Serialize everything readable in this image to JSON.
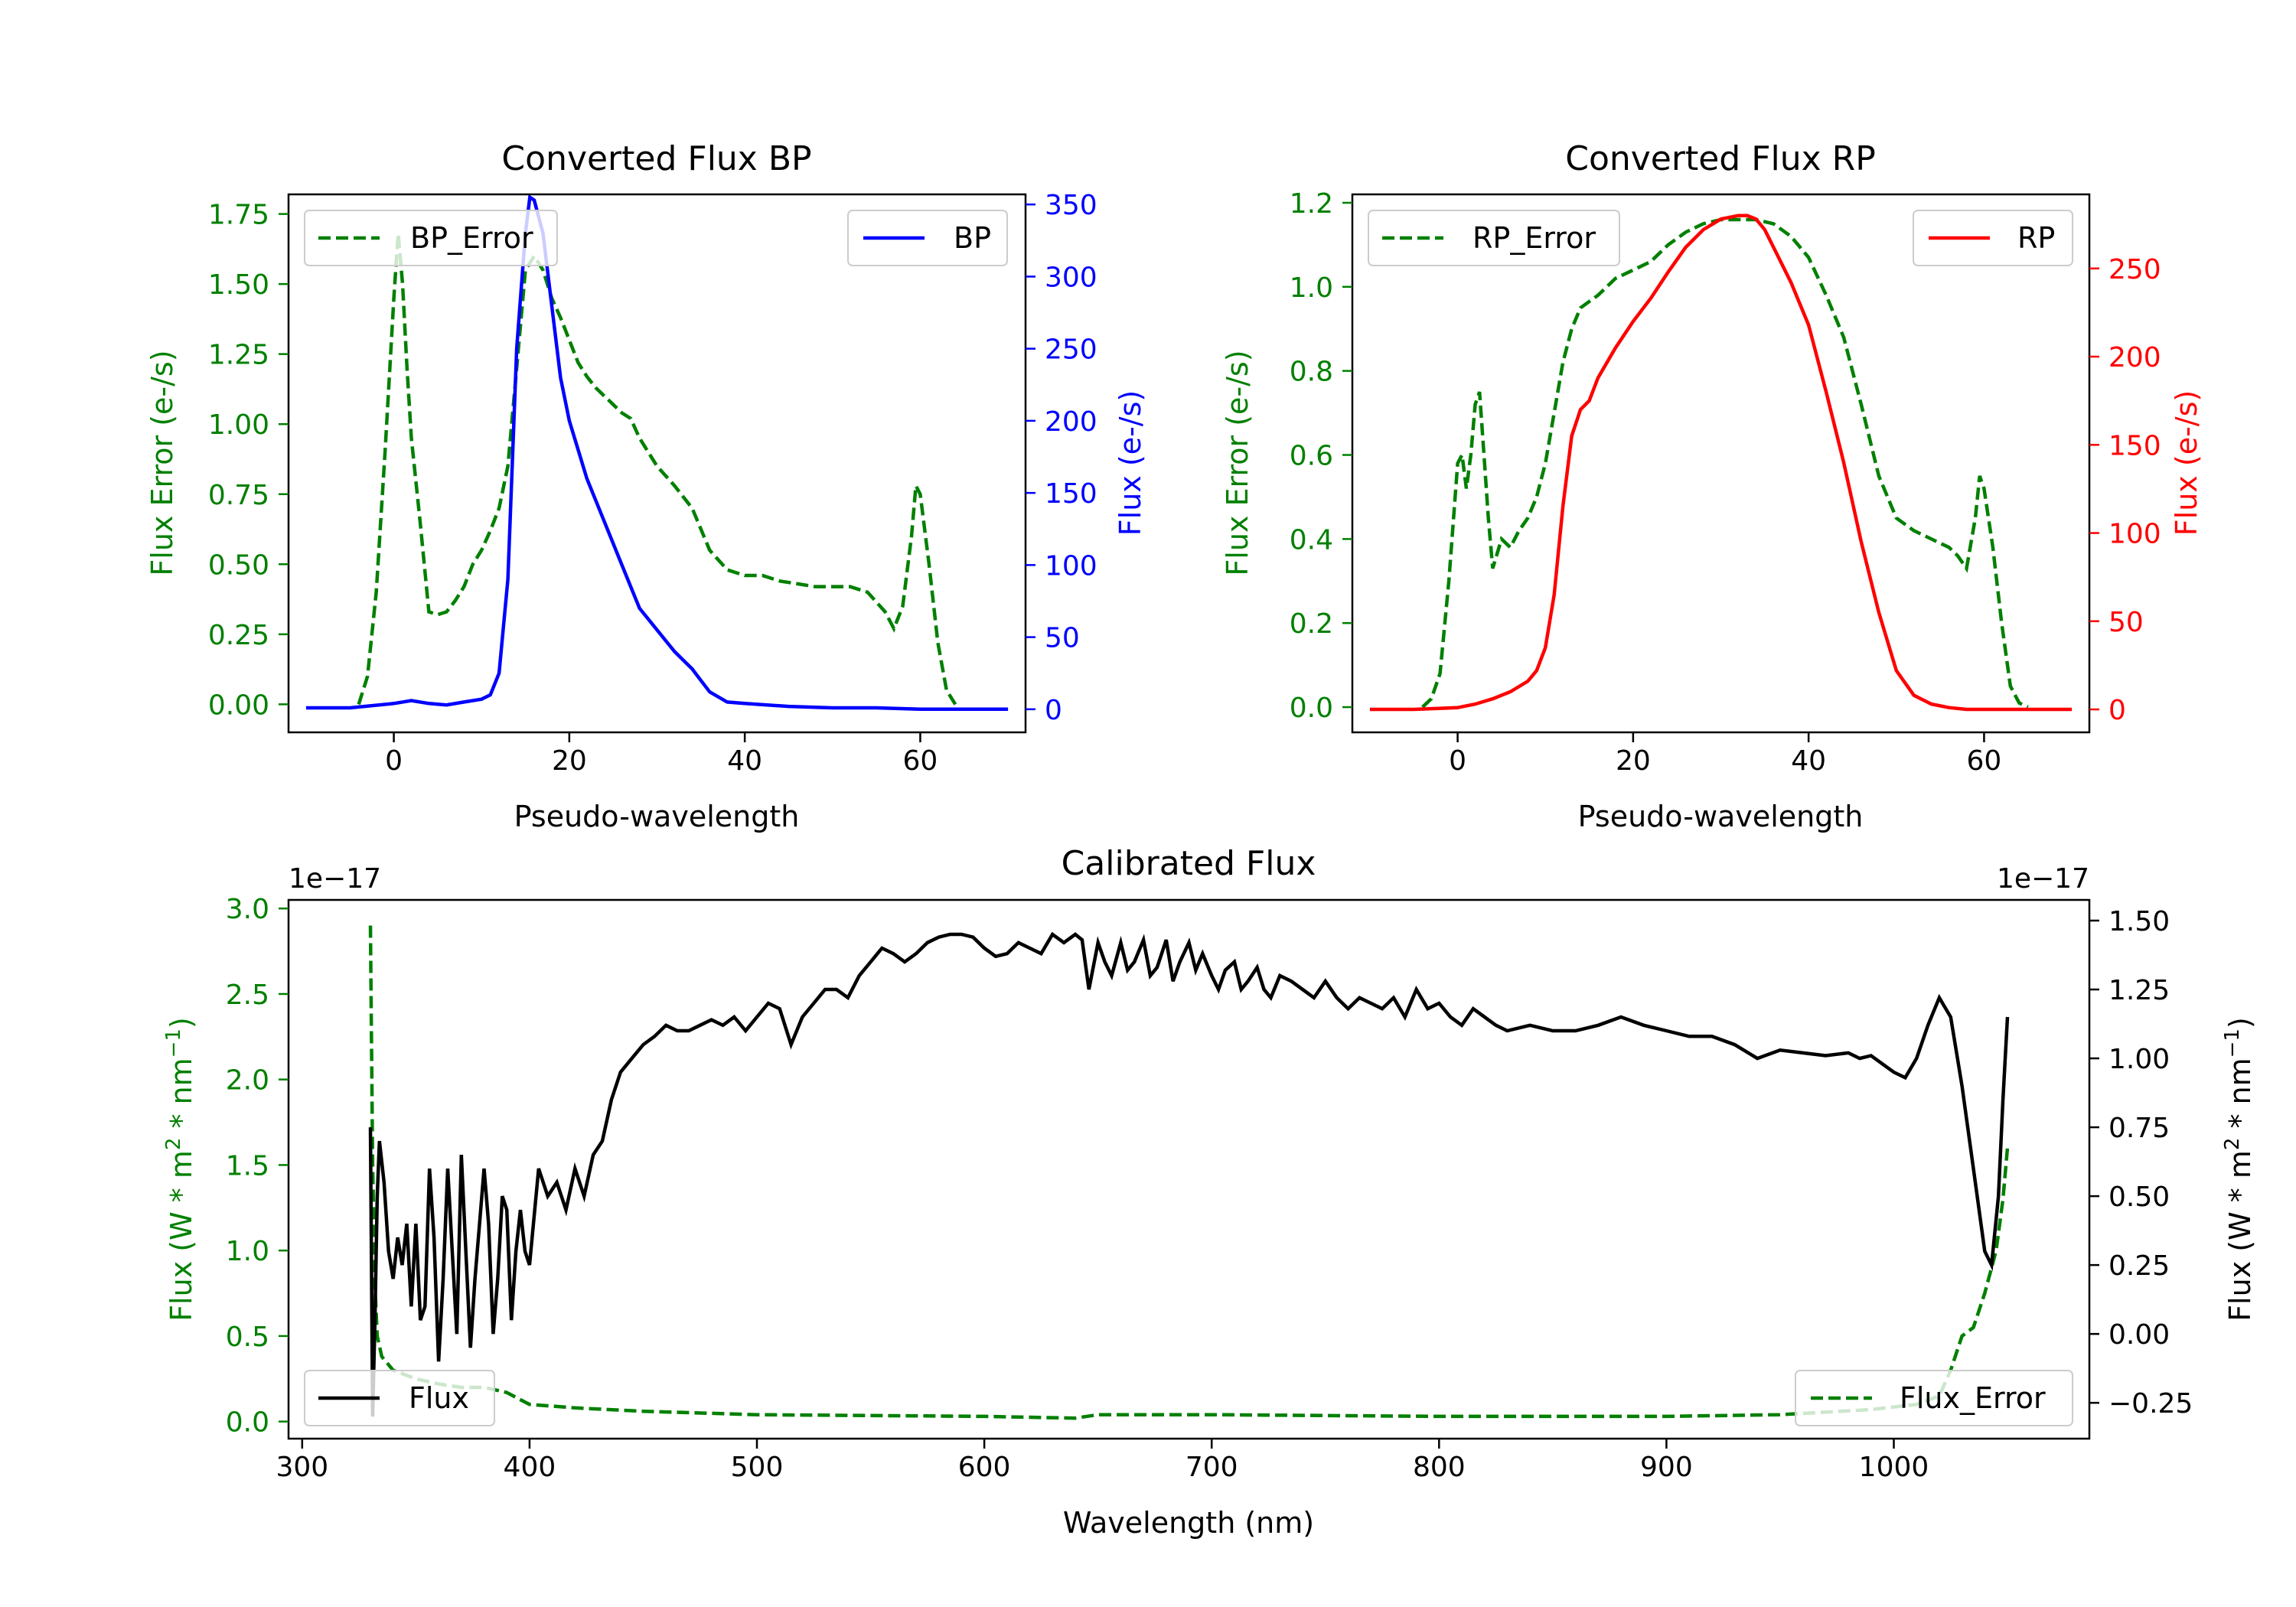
{
  "colors": {
    "error": "#008000",
    "bp": "#0000ff",
    "rp": "#ff0000",
    "flux": "#000000"
  },
  "chart_data": [
    {
      "id": "bp",
      "type": "line",
      "title": "Converted Flux BP",
      "xlabel": "Pseudo-wavelength",
      "ylabel_left": "Flux Error (e-/s)",
      "ylabel_right": "Flux (e-/s)",
      "xlim": [
        -12,
        72
      ],
      "ylim_left": [
        -0.1,
        1.82
      ],
      "ylim_right": [
        -16,
        357
      ],
      "xticks": [
        0,
        20,
        40,
        60
      ],
      "yticks_left": [
        "0.00",
        "0.25",
        "0.50",
        "0.75",
        "1.00",
        "1.25",
        "1.50",
        "1.75"
      ],
      "yticks_right": [
        "0",
        "50",
        "100",
        "150",
        "200",
        "250",
        "300",
        "350"
      ],
      "series": [
        {
          "name": "BP_Error",
          "axis": "left",
          "style": "dashed",
          "color": "#008000",
          "x": [
            -4,
            -3,
            -2,
            -1,
            0,
            0.5,
            1,
            1.5,
            2,
            3,
            4,
            5,
            6,
            7,
            8,
            9,
            10,
            11,
            12,
            13,
            14,
            15,
            16,
            17,
            18,
            19,
            20,
            21,
            22,
            23,
            24,
            25,
            26,
            27,
            28,
            30,
            32,
            34,
            36,
            38,
            40,
            42,
            44,
            46,
            48,
            50,
            52,
            54,
            56,
            57,
            58,
            59,
            59.5,
            60,
            61,
            62,
            63,
            64
          ],
          "values": [
            0.0,
            0.1,
            0.4,
            0.9,
            1.45,
            1.68,
            1.5,
            1.2,
            0.95,
            0.65,
            0.33,
            0.32,
            0.33,
            0.37,
            0.42,
            0.5,
            0.55,
            0.62,
            0.7,
            0.85,
            1.2,
            1.55,
            1.6,
            1.55,
            1.45,
            1.38,
            1.3,
            1.22,
            1.17,
            1.13,
            1.1,
            1.07,
            1.04,
            1.02,
            0.95,
            0.85,
            0.78,
            0.7,
            0.55,
            0.48,
            0.46,
            0.46,
            0.44,
            0.43,
            0.42,
            0.42,
            0.42,
            0.4,
            0.33,
            0.27,
            0.35,
            0.6,
            0.78,
            0.75,
            0.5,
            0.22,
            0.05,
            0.0
          ]
        },
        {
          "name": "BP",
          "axis": "right",
          "style": "solid",
          "color": "#0000ff",
          "x": [
            -10,
            -5,
            0,
            2,
            4,
            6,
            8,
            10,
            11,
            12,
            13,
            14,
            15,
            15.5,
            16,
            17,
            18,
            19,
            20,
            22,
            24,
            26,
            28,
            30,
            32,
            34,
            35,
            36,
            38,
            40,
            45,
            50,
            55,
            60,
            65,
            70
          ],
          "values": [
            1,
            1,
            4,
            6,
            4,
            3,
            5,
            7,
            10,
            25,
            90,
            250,
            330,
            355,
            353,
            330,
            280,
            230,
            200,
            160,
            130,
            100,
            70,
            55,
            40,
            28,
            20,
            12,
            5,
            4,
            2,
            1,
            1,
            0,
            0,
            0
          ]
        }
      ],
      "legend": [
        {
          "label": "BP_Error",
          "position": "upper-left"
        },
        {
          "label": "BP",
          "position": "upper-right"
        }
      ]
    },
    {
      "id": "rp",
      "type": "line",
      "title": "Converted Flux RP",
      "xlabel": "Pseudo-wavelength",
      "ylabel_left": "Flux Error (e-/s)",
      "ylabel_right": "Flux (e-/s)",
      "xlim": [
        -12,
        72
      ],
      "ylim_left": [
        -0.06,
        1.22
      ],
      "ylim_right": [
        -13,
        292
      ],
      "xticks": [
        0,
        20,
        40,
        60
      ],
      "yticks_left": [
        "0.0",
        "0.2",
        "0.4",
        "0.6",
        "0.8",
        "1.0",
        "1.2"
      ],
      "yticks_right": [
        "0",
        "50",
        "100",
        "150",
        "200",
        "250"
      ],
      "series": [
        {
          "name": "RP_Error",
          "axis": "left",
          "style": "dashed",
          "color": "#008000",
          "x": [
            -4,
            -3,
            -2,
            -1,
            0,
            0.5,
            1,
            1.5,
            2,
            2.5,
            3,
            3.5,
            4,
            5,
            6,
            7,
            8,
            9,
            10,
            11,
            12,
            13,
            14,
            16,
            18,
            20,
            22,
            24,
            26,
            28,
            30,
            32,
            34,
            36,
            38,
            40,
            42,
            44,
            46,
            48,
            50,
            52,
            54,
            56,
            57,
            58,
            59,
            59.5,
            60,
            61,
            62,
            63,
            64,
            65
          ],
          "values": [
            0.0,
            0.02,
            0.08,
            0.3,
            0.58,
            0.6,
            0.52,
            0.6,
            0.72,
            0.75,
            0.6,
            0.45,
            0.33,
            0.4,
            0.38,
            0.42,
            0.45,
            0.5,
            0.58,
            0.7,
            0.82,
            0.9,
            0.95,
            0.98,
            1.02,
            1.04,
            1.06,
            1.1,
            1.13,
            1.15,
            1.16,
            1.16,
            1.16,
            1.15,
            1.12,
            1.07,
            0.98,
            0.88,
            0.72,
            0.55,
            0.45,
            0.42,
            0.4,
            0.38,
            0.36,
            0.33,
            0.45,
            0.55,
            0.52,
            0.38,
            0.2,
            0.05,
            0.01,
            0.0
          ]
        },
        {
          "name": "RP",
          "axis": "right",
          "style": "solid",
          "color": "#ff0000",
          "x": [
            -10,
            -5,
            0,
            2,
            4,
            6,
            8,
            9,
            10,
            11,
            12,
            13,
            14,
            15,
            16,
            18,
            20,
            22,
            24,
            26,
            28,
            30,
            32,
            33,
            34,
            35,
            36,
            38,
            40,
            42,
            44,
            46,
            48,
            50,
            52,
            54,
            56,
            58,
            60,
            62,
            65,
            70
          ],
          "values": [
            0,
            0,
            1,
            3,
            6,
            10,
            16,
            22,
            35,
            65,
            115,
            155,
            170,
            175,
            188,
            205,
            220,
            233,
            248,
            262,
            272,
            278,
            280,
            280,
            278,
            272,
            262,
            242,
            218,
            180,
            140,
            95,
            55,
            22,
            8,
            3,
            1,
            0,
            0,
            0,
            0,
            0
          ]
        }
      ],
      "legend": [
        {
          "label": "RP_Error",
          "position": "upper-left"
        },
        {
          "label": "RP",
          "position": "upper-right"
        }
      ]
    },
    {
      "id": "calibrated",
      "type": "line",
      "title": "Calibrated Flux",
      "xlabel": "Wavelength (nm)",
      "ylabel_left": "Flux (W * m^2 * nm^-1)",
      "ylabel_right": "Flux (W * m^2 * nm^-1)",
      "offset_left": "1e−17",
      "offset_right": "1e−17",
      "xlim": [
        294,
        1086
      ],
      "ylim_left": [
        -0.1,
        3.05
      ],
      "ylim_right": [
        -0.38,
        1.575
      ],
      "xticks": [
        300,
        400,
        500,
        600,
        700,
        800,
        900,
        1000
      ],
      "yticks_left": [
        "0.0",
        "0.5",
        "1.0",
        "1.5",
        "2.0",
        "2.5",
        "3.0"
      ],
      "yticks_right": [
        "−0.25",
        "0.00",
        "0.25",
        "0.50",
        "0.75",
        "1.00",
        "1.25",
        "1.50"
      ],
      "series": [
        {
          "name": "Flux_Error",
          "axis": "left",
          "style": "dashed",
          "color": "#008000",
          "x": [
            330,
            331,
            332,
            333,
            335,
            340,
            350,
            360,
            370,
            380,
            390,
            400,
            410,
            420,
            450,
            500,
            600,
            640,
            650,
            700,
            800,
            900,
            950,
            990,
            1010,
            1020,
            1025,
            1030,
            1035,
            1040,
            1045,
            1048,
            1050
          ],
          "values": [
            2.9,
            1.5,
            0.8,
            0.5,
            0.38,
            0.3,
            0.25,
            0.22,
            0.2,
            0.2,
            0.17,
            0.1,
            0.09,
            0.08,
            0.06,
            0.04,
            0.03,
            0.02,
            0.04,
            0.04,
            0.03,
            0.03,
            0.04,
            0.07,
            0.1,
            0.15,
            0.3,
            0.5,
            0.55,
            0.75,
            1.0,
            1.3,
            1.6
          ]
        },
        {
          "name": "Flux",
          "axis": "right",
          "style": "solid",
          "color": "#000000",
          "x": [
            330,
            331,
            332,
            333,
            334,
            336,
            338,
            340,
            342,
            344,
            346,
            348,
            350,
            352,
            354,
            356,
            358,
            360,
            362,
            364,
            366,
            368,
            370,
            372,
            374,
            376,
            378,
            380,
            382,
            384,
            386,
            388,
            390,
            392,
            394,
            396,
            398,
            400,
            404,
            408,
            412,
            416,
            420,
            424,
            428,
            432,
            436,
            440,
            445,
            450,
            455,
            460,
            465,
            470,
            475,
            480,
            485,
            490,
            495,
            500,
            505,
            510,
            515,
            520,
            525,
            530,
            535,
            540,
            545,
            550,
            555,
            560,
            565,
            570,
            575,
            580,
            585,
            590,
            595,
            600,
            605,
            610,
            615,
            620,
            625,
            630,
            635,
            640,
            643,
            646,
            650,
            653,
            656,
            660,
            663,
            666,
            670,
            673,
            676,
            680,
            683,
            686,
            690,
            693,
            696,
            700,
            703,
            706,
            710,
            713,
            716,
            720,
            723,
            726,
            730,
            735,
            740,
            745,
            750,
            755,
            760,
            765,
            770,
            775,
            780,
            785,
            790,
            795,
            800,
            805,
            810,
            815,
            820,
            825,
            830,
            840,
            850,
            860,
            870,
            880,
            890,
            900,
            910,
            920,
            930,
            940,
            950,
            960,
            970,
            980,
            985,
            990,
            995,
            1000,
            1005,
            1010,
            1015,
            1020,
            1025,
            1030,
            1035,
            1040,
            1043,
            1046,
            1048,
            1050
          ],
          "values": [
            0.75,
            -0.3,
            0.05,
            0.5,
            0.7,
            0.55,
            0.3,
            0.2,
            0.35,
            0.25,
            0.4,
            0.1,
            0.4,
            0.05,
            0.1,
            0.6,
            0.35,
            -0.1,
            0.2,
            0.6,
            0.3,
            0.0,
            0.65,
            0.3,
            -0.05,
            0.2,
            0.4,
            0.6,
            0.4,
            0.0,
            0.2,
            0.5,
            0.45,
            0.05,
            0.3,
            0.45,
            0.3,
            0.25,
            0.6,
            0.5,
            0.55,
            0.45,
            0.6,
            0.5,
            0.65,
            0.7,
            0.85,
            0.95,
            1.0,
            1.05,
            1.08,
            1.12,
            1.1,
            1.1,
            1.12,
            1.14,
            1.12,
            1.15,
            1.1,
            1.15,
            1.2,
            1.18,
            1.05,
            1.15,
            1.2,
            1.25,
            1.25,
            1.22,
            1.3,
            1.35,
            1.4,
            1.38,
            1.35,
            1.38,
            1.42,
            1.44,
            1.45,
            1.45,
            1.44,
            1.4,
            1.37,
            1.38,
            1.42,
            1.4,
            1.38,
            1.45,
            1.42,
            1.45,
            1.43,
            1.25,
            1.42,
            1.35,
            1.3,
            1.42,
            1.32,
            1.35,
            1.43,
            1.3,
            1.33,
            1.43,
            1.28,
            1.35,
            1.42,
            1.32,
            1.38,
            1.3,
            1.25,
            1.32,
            1.35,
            1.25,
            1.28,
            1.33,
            1.25,
            1.22,
            1.3,
            1.28,
            1.25,
            1.22,
            1.28,
            1.22,
            1.18,
            1.22,
            1.2,
            1.18,
            1.22,
            1.15,
            1.25,
            1.18,
            1.2,
            1.15,
            1.12,
            1.18,
            1.15,
            1.12,
            1.1,
            1.12,
            1.1,
            1.1,
            1.12,
            1.15,
            1.12,
            1.1,
            1.08,
            1.08,
            1.05,
            1.0,
            1.03,
            1.02,
            1.01,
            1.02,
            1.0,
            1.01,
            0.98,
            0.95,
            0.93,
            1.0,
            1.12,
            1.22,
            1.15,
            0.9,
            0.6,
            0.3,
            0.25,
            0.5,
            0.85,
            1.15
          ]
        }
      ],
      "legend": [
        {
          "label": "Flux",
          "position": "lower-left"
        },
        {
          "label": "Flux_Error",
          "position": "lower-right"
        }
      ]
    }
  ]
}
